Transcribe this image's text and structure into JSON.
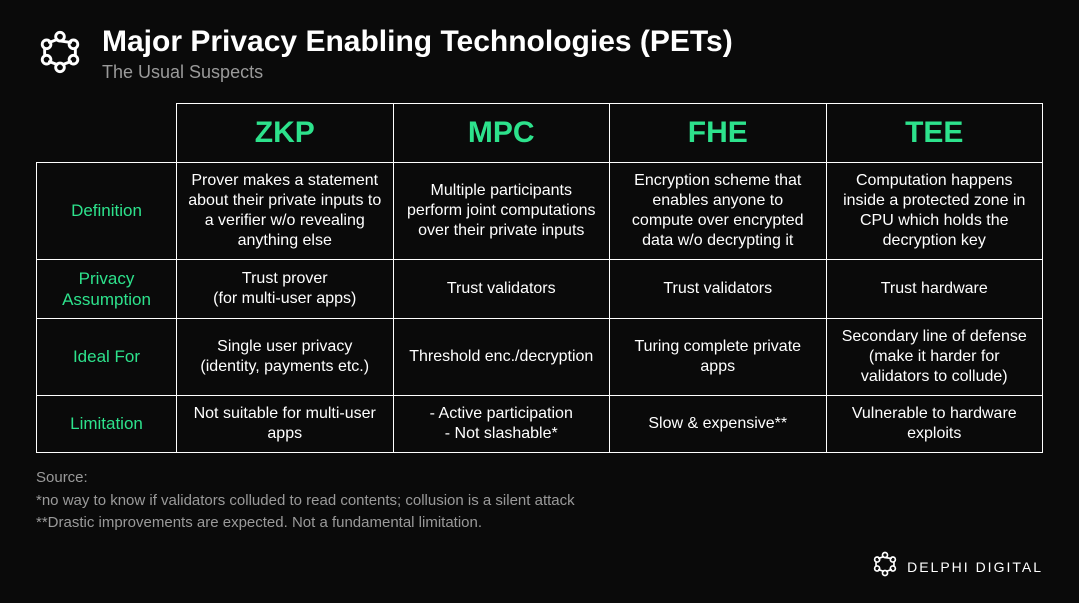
{
  "header": {
    "title": "Major Privacy Enabling Technologies (PETs)",
    "subtitle": "The Usual Suspects"
  },
  "colors": {
    "accent": "#2de28c",
    "background": "#0a0a0a",
    "text": "#ffffff",
    "muted": "#9a9a9a",
    "border": "#ffffff"
  },
  "table": {
    "columns": [
      "ZKP",
      "MPC",
      "FHE",
      "TEE"
    ],
    "rows": [
      {
        "label": "Definition",
        "cells": [
          "Prover makes a statement about their private inputs to a verifier w/o revealing anything else",
          "Multiple participants perform joint computations over their private inputs",
          "Encryption scheme that enables anyone to compute over encrypted data w/o decrypting it",
          "Computation happens inside a protected zone in CPU which holds the decryption key"
        ]
      },
      {
        "label": "Privacy Assumption",
        "cells": [
          "Trust prover\n(for multi-user apps)",
          "Trust validators",
          "Trust validators",
          "Trust hardware"
        ]
      },
      {
        "label": "Ideal For",
        "cells": [
          "Single user privacy (identity, payments etc.)",
          "Threshold enc./decryption",
          "Turing complete private apps",
          "Secondary line of defense (make it harder for validators to collude)"
        ]
      },
      {
        "label": "Limitation",
        "cells": [
          "Not suitable for multi-user apps",
          "- Active participation\n- Not slashable*",
          "Slow & expensive**",
          "Vulnerable to hardware exploits"
        ]
      }
    ]
  },
  "source": {
    "label": "Source:",
    "note1": "*no way to know if validators colluded to read contents; collusion is a silent attack",
    "note2": "**Drastic improvements are expected. Not a fundamental limitation."
  },
  "footer": {
    "brand": "DELPHI DIGITAL"
  }
}
